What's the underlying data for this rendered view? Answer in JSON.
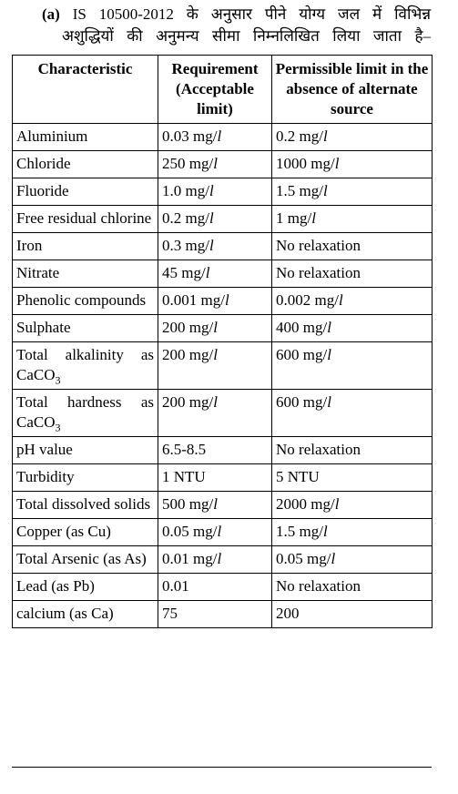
{
  "intro": {
    "label": "(a)",
    "line1": "IS 10500-2012 के अनुसार पीने योग्य जल में विभिन्न",
    "line2": "अशुद्धियों की अनुमन्य सीमा निम्नलिखित लिया जाता है–"
  },
  "table": {
    "headers": [
      "Characteristic",
      "Requirement (Acceptable limit)",
      "Permissible limit in the absence of alternate source"
    ],
    "rows": [
      {
        "name": "Aluminium",
        "acc": "0.03",
        "acc_unit": "mg/l",
        "perm": "0.2",
        "perm_unit": "mg/l"
      },
      {
        "name": "Chloride",
        "acc": "250",
        "acc_unit": "mg/l",
        "perm": "1000",
        "perm_unit": "mg/l"
      },
      {
        "name": "Fluoride",
        "acc": "1.0",
        "acc_unit": "mg/l",
        "perm": "1.5",
        "perm_unit": "mg/l"
      },
      {
        "name": "Free residual chlorine",
        "acc": "0.2",
        "acc_unit": "mg/l",
        "perm": "1",
        "perm_unit": "mg/l"
      },
      {
        "name": "Iron",
        "acc": "0.3",
        "acc_unit": "mg/l",
        "perm": "No relaxation",
        "perm_unit": ""
      },
      {
        "name": "Nitrate",
        "acc": "45",
        "acc_unit": "mg/l",
        "perm": "No relaxation",
        "perm_unit": ""
      },
      {
        "name": "Phenolic compounds",
        "acc": "0.001",
        "acc_unit": "mg/l",
        "perm": "0.002",
        "perm_unit": "mg/l"
      },
      {
        "name": "Sulphate",
        "acc": "200",
        "acc_unit": "mg/l",
        "perm": "400",
        "perm_unit": "mg/l"
      },
      {
        "name": "Total alkalinity as",
        "name_sub_base": "CaCO",
        "name_sub": "3",
        "acc": "200",
        "acc_unit": "mg/l",
        "perm": "600",
        "perm_unit": "mg/l"
      },
      {
        "name": "Total hardness as",
        "name_sub_base": "CaCO",
        "name_sub": "3",
        "acc": "200",
        "acc_unit": "mg/l",
        "perm": "600",
        "perm_unit": "mg/l"
      },
      {
        "name": "pH value",
        "acc": "6.5-8.5",
        "acc_unit": "",
        "perm": "No relaxation",
        "perm_unit": ""
      },
      {
        "name": "Turbidity",
        "acc": "1 NTU",
        "acc_unit": "",
        "perm": "5 NTU",
        "perm_unit": ""
      },
      {
        "name": "Total dissolved solids",
        "acc": "500",
        "acc_unit": "mg/l",
        "perm": "2000",
        "perm_unit": "mg/l"
      },
      {
        "name": "Copper (as Cu)",
        "acc": "0.05",
        "acc_unit": "mg/l",
        "perm": "1.5",
        "perm_unit": "mg/l"
      },
      {
        "name": "Total Arsenic (as As)",
        "acc": "0.01",
        "acc_unit": "mg/l",
        "perm": "0.05",
        "perm_unit": "mg/l"
      },
      {
        "name": "Lead (as Pb)",
        "acc": "0.01",
        "acc_unit": "",
        "perm": "No relaxation",
        "perm_unit": ""
      },
      {
        "name": "calcium (as Ca)",
        "acc": "75",
        "acc_unit": "",
        "perm": "200",
        "perm_unit": ""
      }
    ]
  }
}
